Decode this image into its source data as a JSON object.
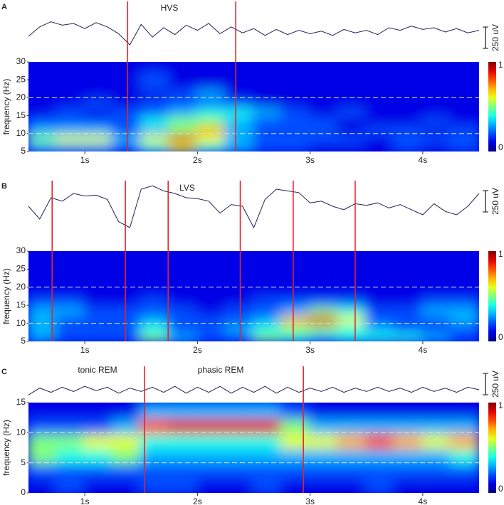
{
  "chart_data": [
    {
      "type": "spectrogram",
      "panel_label": "A",
      "annotations": [
        "HVS"
      ],
      "ylabel": "frequency (Hz)",
      "xlim": [
        0.5,
        4.5
      ],
      "xticks": [
        {
          "value": 1,
          "label": "1s"
        },
        {
          "value": 2,
          "label": "2s"
        },
        {
          "value": 3,
          "label": "3s"
        },
        {
          "value": 4,
          "label": "4s"
        }
      ],
      "ylim": [
        5,
        30
      ],
      "yticks": [
        5,
        10,
        15,
        20,
        25,
        30
      ],
      "hlines": [
        10,
        20
      ],
      "events": [
        1.38,
        2.34
      ],
      "event_color": "#e3242b",
      "clim": [
        0,
        1
      ],
      "cticks": [
        0,
        1
      ],
      "scale_bar": {
        "value": 250,
        "label": "250 uV"
      },
      "trace_x": [
        0.5,
        0.6,
        0.7,
        0.8,
        0.9,
        1.0,
        1.1,
        1.2,
        1.3,
        1.4,
        1.5,
        1.6,
        1.7,
        1.8,
        1.9,
        2.0,
        2.1,
        2.2,
        2.3,
        2.4,
        2.5,
        2.6,
        2.7,
        2.8,
        2.9,
        3.0,
        3.1,
        3.2,
        3.3,
        3.4,
        3.5,
        3.6,
        3.7,
        3.8,
        3.9,
        4.0,
        4.1,
        4.2,
        4.3,
        4.4,
        4.5
      ],
      "trace": [
        -50,
        60,
        120,
        80,
        100,
        40,
        110,
        60,
        -20,
        -150,
        90,
        -60,
        50,
        -30,
        80,
        20,
        100,
        -20,
        60,
        -10,
        40,
        -40,
        30,
        -30,
        20,
        -20,
        10,
        -40,
        30,
        -10,
        20,
        -30,
        50,
        20,
        70,
        30,
        50,
        0,
        40,
        -10,
        20
      ],
      "z": [
        [
          0.3,
          0.3,
          0.3,
          0.2,
          0.4,
          0.6,
          0.4,
          0.3,
          0.2,
          0.2,
          0.1,
          0.1,
          0.1,
          0.2,
          0.1,
          0.2
        ],
        [
          0.5,
          0.6,
          0.6,
          0.3,
          0.6,
          0.9,
          0.6,
          0.3,
          0.2,
          0.2,
          0.2,
          0.2,
          0.1,
          0.2,
          0.2,
          0.2
        ],
        [
          0.3,
          0.3,
          0.3,
          0.2,
          0.3,
          0.5,
          0.7,
          0.3,
          0.2,
          0.2,
          0.2,
          0.1,
          0.2,
          0.2,
          0.1,
          0.2
        ],
        [
          0.2,
          0.2,
          0.2,
          0.2,
          0.4,
          0.5,
          0.5,
          0.3,
          0.2,
          0.2,
          0.2,
          0.1,
          0.1,
          0.1,
          0.2,
          0.1
        ],
        [
          0.1,
          0.2,
          0.1,
          0.2,
          0.2,
          0.3,
          0.4,
          0.4,
          0.3,
          0.2,
          0.1,
          0.2,
          0.1,
          0.1,
          0.1,
          0.1
        ],
        [
          0.1,
          0.1,
          0.2,
          0.1,
          0.2,
          0.2,
          0.2,
          0.2,
          0.1,
          0.1,
          0.1,
          0.1,
          0.1,
          0.1,
          0.1,
          0.1
        ],
        [
          0.1,
          0.1,
          0.1,
          0.1,
          0.1,
          0.2,
          0.3,
          0.1,
          0.1,
          0.1,
          0.1,
          0.1,
          0.1,
          0.1,
          0.1,
          0.1
        ],
        [
          0.1,
          0.1,
          0.1,
          0.1,
          0.2,
          0.1,
          0.1,
          0.1,
          0.1,
          0.1,
          0.1,
          0.1,
          0.1,
          0.1,
          0.1,
          0.1
        ],
        [
          0.1,
          0.1,
          0.1,
          0.1,
          0.2,
          0.1,
          0.1,
          0.1,
          0.1,
          0.1,
          0.1,
          0.1,
          0.1,
          0.1,
          0.1,
          0.1
        ],
        [
          0.1,
          0.1,
          0.1,
          0.1,
          0.1,
          0.1,
          0.1,
          0.1,
          0.1,
          0.1,
          0.1,
          0.1,
          0.1,
          0.1,
          0.1,
          0.1
        ]
      ]
    },
    {
      "type": "spectrogram",
      "panel_label": "B",
      "annotations": [
        "LVS"
      ],
      "ylabel": "frequency (Hz)",
      "xlim": [
        0.5,
        4.5
      ],
      "xticks": [
        {
          "value": 1,
          "label": "1s"
        },
        {
          "value": 2,
          "label": "2s"
        },
        {
          "value": 3,
          "label": "3s"
        },
        {
          "value": 4,
          "label": "4s"
        }
      ],
      "ylim": [
        5,
        30
      ],
      "yticks": [
        5,
        10,
        15,
        20,
        25,
        30
      ],
      "hlines": [
        10,
        20
      ],
      "events": [
        0.71,
        1.36,
        1.74,
        2.38,
        2.85,
        3.4
      ],
      "event_color": "#e3242b",
      "clim": [
        0,
        1
      ],
      "cticks": [
        0,
        1
      ],
      "scale_bar": {
        "value": 250,
        "label": "250 uV"
      },
      "trace_x": [
        0.5,
        0.6,
        0.7,
        0.8,
        0.9,
        1.0,
        1.1,
        1.2,
        1.3,
        1.4,
        1.5,
        1.6,
        1.7,
        1.8,
        1.9,
        2.0,
        2.1,
        2.2,
        2.3,
        2.4,
        2.5,
        2.6,
        2.7,
        2.8,
        2.9,
        3.0,
        3.1,
        3.2,
        3.3,
        3.4,
        3.5,
        3.6,
        3.7,
        3.8,
        3.9,
        4.0,
        4.1,
        4.2,
        4.3,
        4.4,
        4.5
      ],
      "trace": [
        0,
        -150,
        100,
        60,
        150,
        120,
        130,
        80,
        -180,
        -250,
        200,
        240,
        180,
        150,
        100,
        90,
        60,
        -80,
        20,
        0,
        -250,
        80,
        200,
        180,
        160,
        40,
        60,
        0,
        -40,
        30,
        10,
        40,
        -20,
        20,
        -40,
        -100,
        30,
        -60,
        -100,
        0,
        150
      ],
      "z": [
        [
          0.3,
          0.2,
          0.2,
          0.2,
          0.5,
          0.3,
          0.2,
          0.2,
          0.5,
          0.4,
          0.3,
          0.4,
          0.4,
          0.4,
          0.3,
          0.2
        ],
        [
          0.3,
          0.2,
          0.2,
          0.2,
          0.4,
          0.2,
          0.2,
          0.3,
          0.4,
          0.5,
          0.5,
          0.4,
          0.3,
          0.2,
          0.2,
          0.2
        ],
        [
          0.3,
          0.2,
          0.2,
          0.2,
          0.3,
          0.2,
          0.2,
          0.2,
          0.3,
          0.7,
          0.9,
          0.6,
          0.2,
          0.2,
          0.2,
          0.3
        ],
        [
          0.3,
          0.3,
          0.2,
          0.2,
          0.2,
          0.2,
          0.1,
          0.2,
          0.2,
          0.3,
          0.5,
          0.4,
          0.2,
          0.2,
          0.3,
          0.3
        ],
        [
          0.2,
          0.2,
          0.1,
          0.1,
          0.2,
          0.1,
          0.1,
          0.1,
          0.2,
          0.2,
          0.2,
          0.2,
          0.1,
          0.1,
          0.2,
          0.2
        ],
        [
          0.1,
          0.1,
          0.1,
          0.1,
          0.1,
          0.1,
          0.1,
          0.1,
          0.1,
          0.1,
          0.1,
          0.1,
          0.1,
          0.1,
          0.1,
          0.1
        ],
        [
          0.1,
          0.1,
          0.1,
          0.1,
          0.1,
          0.1,
          0.1,
          0.1,
          0.1,
          0.1,
          0.1,
          0.1,
          0.1,
          0.1,
          0.1,
          0.1
        ],
        [
          0.1,
          0.1,
          0.1,
          0.1,
          0.1,
          0.1,
          0.1,
          0.1,
          0.1,
          0.1,
          0.1,
          0.1,
          0.1,
          0.1,
          0.1,
          0.1
        ],
        [
          0.1,
          0.1,
          0.1,
          0.1,
          0.1,
          0.1,
          0.1,
          0.1,
          0.1,
          0.1,
          0.1,
          0.1,
          0.1,
          0.1,
          0.1,
          0.1
        ],
        [
          0.1,
          0.1,
          0.1,
          0.1,
          0.1,
          0.1,
          0.1,
          0.1,
          0.1,
          0.1,
          0.1,
          0.1,
          0.1,
          0.1,
          0.1,
          0.1
        ]
      ]
    },
    {
      "type": "spectrogram",
      "panel_label": "C",
      "annotations": [
        "tonic REM",
        "phasic REM"
      ],
      "ylabel": "frequency (Hz)",
      "xlim": [
        0.5,
        4.5
      ],
      "xticks": [
        {
          "value": 1,
          "label": "1s"
        },
        {
          "value": 2,
          "label": "2s"
        },
        {
          "value": 3,
          "label": "3s"
        },
        {
          "value": 4,
          "label": "4s"
        }
      ],
      "ylim": [
        0,
        15
      ],
      "yticks": [
        0,
        5,
        10,
        15
      ],
      "hlines": [
        5,
        10
      ],
      "events": [
        1.53,
        2.94
      ],
      "event_color": "#e3242b",
      "clim": [
        0,
        1
      ],
      "cticks": [
        0,
        1
      ],
      "scale_bar": {
        "value": 250,
        "label": "250 uV"
      },
      "trace_x": [
        0.5,
        0.6,
        0.7,
        0.8,
        0.9,
        1.0,
        1.1,
        1.2,
        1.3,
        1.4,
        1.5,
        1.6,
        1.7,
        1.8,
        1.9,
        2.0,
        2.1,
        2.2,
        2.3,
        2.4,
        2.5,
        2.6,
        2.7,
        2.8,
        2.9,
        3.0,
        3.1,
        3.2,
        3.3,
        3.4,
        3.5,
        3.6,
        3.7,
        3.8,
        3.9,
        4.0,
        4.1,
        4.2,
        4.3,
        4.4,
        4.5
      ],
      "trace": [
        -60,
        20,
        -30,
        30,
        -20,
        40,
        -10,
        30,
        -40,
        20,
        -20,
        30,
        -30,
        40,
        -40,
        30,
        -30,
        40,
        -40,
        30,
        -30,
        40,
        -40,
        30,
        -30,
        20,
        -20,
        30,
        -30,
        20,
        -20,
        30,
        -20,
        20,
        -30,
        30,
        -20,
        20,
        -30,
        30,
        0
      ],
      "z": [
        [
          0.1,
          0.2,
          0.1,
          0.1,
          0.2,
          0.2,
          0.1,
          0.1,
          0.2,
          0.1,
          0.1,
          0.1,
          0.2,
          0.1,
          0.1,
          0.1
        ],
        [
          0.2,
          0.2,
          0.2,
          0.2,
          0.2,
          0.2,
          0.2,
          0.2,
          0.2,
          0.2,
          0.2,
          0.2,
          0.2,
          0.2,
          0.2,
          0.2
        ],
        [
          0.5,
          0.4,
          0.4,
          0.5,
          0.3,
          0.3,
          0.3,
          0.3,
          0.3,
          0.3,
          0.3,
          0.3,
          0.3,
          0.3,
          0.3,
          0.4
        ],
        [
          0.5,
          0.5,
          0.6,
          0.6,
          0.4,
          0.4,
          0.4,
          0.4,
          0.4,
          0.6,
          0.6,
          0.7,
          0.8,
          0.7,
          0.6,
          0.7
        ],
        [
          0.2,
          0.2,
          0.2,
          0.3,
          0.8,
          0.9,
          0.9,
          0.9,
          0.9,
          0.5,
          0.3,
          0.3,
          0.3,
          0.3,
          0.3,
          0.3
        ],
        [
          0.1,
          0.1,
          0.1,
          0.1,
          0.3,
          0.3,
          0.3,
          0.3,
          0.3,
          0.2,
          0.1,
          0.1,
          0.1,
          0.1,
          0.1,
          0.1
        ]
      ]
    }
  ]
}
